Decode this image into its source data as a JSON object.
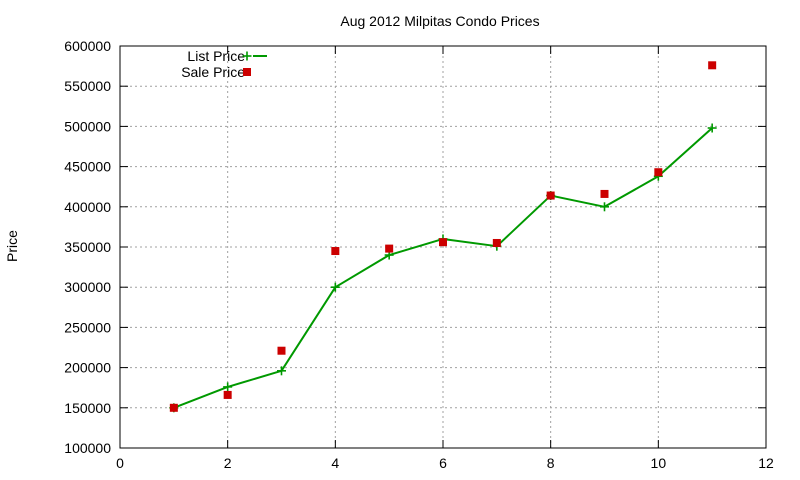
{
  "chart_data": {
    "type": "line",
    "title": "Aug 2012 Milpitas Condo Prices",
    "xlabel": "",
    "ylabel": "Price",
    "xlim": [
      0,
      12
    ],
    "ylim": [
      100000,
      600000
    ],
    "xticks": [
      0,
      2,
      4,
      6,
      8,
      10,
      12
    ],
    "yticks": [
      100000,
      150000,
      200000,
      250000,
      300000,
      350000,
      400000,
      450000,
      500000,
      550000,
      600000
    ],
    "grid": true,
    "legend_position": "top-left",
    "series": [
      {
        "name": "List Price",
        "style": "lines+points",
        "marker": "plus",
        "color": "#009900",
        "x": [
          1,
          2,
          3,
          4,
          5,
          6,
          7,
          8,
          9,
          10,
          11
        ],
        "y": [
          150000,
          176000,
          196000,
          300000,
          340000,
          360000,
          351000,
          414000,
          400000,
          438000,
          498000
        ]
      },
      {
        "name": "Sale Price",
        "style": "points",
        "marker": "square",
        "color": "#cc0000",
        "x": [
          1,
          2,
          3,
          4,
          5,
          6,
          7,
          8,
          9,
          10,
          11
        ],
        "y": [
          150000,
          166000,
          221000,
          345000,
          348000,
          356000,
          355000,
          414000,
          416000,
          443000,
          576000
        ]
      }
    ]
  }
}
